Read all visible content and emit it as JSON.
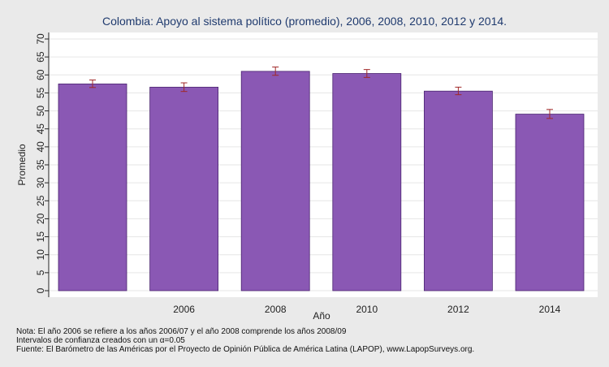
{
  "chart_data": {
    "type": "bar",
    "title": "Colombia: Apoyo al sistema político (promedio), 2006, 2008, 2010, 2012 y 2014.",
    "xlabel": "Año",
    "ylabel": "Promedio",
    "categories": [
      "",
      "2006",
      "2008",
      "2010",
      "2012",
      "2014"
    ],
    "values": [
      57.5,
      56.6,
      61.0,
      60.4,
      55.5,
      49.1
    ],
    "ci_low": [
      56.5,
      55.4,
      59.9,
      59.3,
      54.5,
      47.9
    ],
    "ci_high": [
      58.6,
      57.8,
      62.2,
      61.5,
      56.6,
      50.4
    ],
    "ylim": [
      0,
      70
    ],
    "yticks": [
      0,
      5,
      10,
      15,
      20,
      25,
      30,
      35,
      40,
      45,
      50,
      55,
      60,
      65,
      70
    ],
    "grid": true,
    "bar_color": "#8a58b4",
    "bar_stroke": "#4a2470",
    "error_color": "#a02828"
  },
  "notes": [
    "Nota: El año 2006 se refiere a los años 2006/07 y el año 2008 comprende los años 2008/09",
    "Intervalos de confianza creados con un α=0.05",
    "Fuente: El Barómetro de las Américas por el Proyecto de Opinión Pública de América Latina (LAPOP), www.LapopSurveys.org."
  ]
}
